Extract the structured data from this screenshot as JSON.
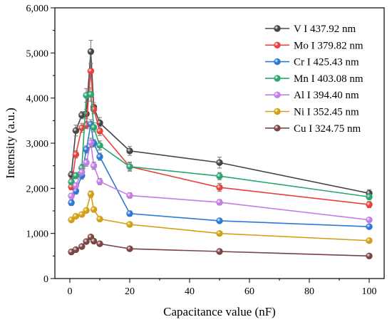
{
  "chart_data": {
    "type": "line",
    "title": "",
    "xlabel": "Capacitance value (nF)",
    "ylabel": "Intensity (a.u.)",
    "xlim": [
      -5,
      105
    ],
    "ylim": [
      0,
      6000
    ],
    "xticks": [
      0,
      20,
      40,
      60,
      80,
      100
    ],
    "yticks": [
      0,
      1000,
      2000,
      3000,
      4000,
      5000,
      6000
    ],
    "xtick_labels": [
      "0",
      "20",
      "40",
      "60",
      "80",
      "100"
    ],
    "ytick_labels": [
      "0",
      "1,000",
      "2,000",
      "3,000",
      "4,000",
      "5,000",
      "6,000"
    ],
    "legend_position": "top-right",
    "grid": false,
    "x": [
      0.5,
      2,
      4,
      5.5,
      7,
      8,
      10,
      20,
      50,
      100
    ],
    "series": [
      {
        "name": "V I 437.92 nm",
        "color": "#454545",
        "values": [
          2300,
          3280,
          3620,
          3650,
          5030,
          3800,
          3450,
          2830,
          2570,
          1890
        ],
        "errors": [
          80,
          120,
          80,
          100,
          250,
          100,
          120,
          100,
          120,
          80
        ]
      },
      {
        "name": "Mo I 379.82 nm",
        "color": "#e8413c",
        "values": [
          2030,
          2750,
          3340,
          3400,
          4600,
          3750,
          3270,
          2480,
          2020,
          1640
        ],
        "errors": [
          60,
          80,
          100,
          80,
          150,
          100,
          100,
          100,
          90,
          70
        ]
      },
      {
        "name": "Cr I 425.43 nm",
        "color": "#2b78d6",
        "values": [
          1680,
          1940,
          2280,
          2860,
          3420,
          3000,
          2700,
          1440,
          1280,
          1150
        ],
        "errors": [
          60,
          70,
          80,
          80,
          100,
          80,
          80,
          60,
          40,
          40
        ]
      },
      {
        "name": "Mn I 403.08 nm",
        "color": "#2aa570",
        "values": [
          2140,
          2280,
          2450,
          4060,
          4080,
          3350,
          2950,
          2480,
          2270,
          1810
        ],
        "errors": [
          60,
          70,
          80,
          150,
          150,
          100,
          100,
          90,
          80,
          60
        ]
      },
      {
        "name": "Al I 394.40 nm",
        "color": "#c57de6",
        "values": [
          1830,
          2060,
          2360,
          2570,
          3010,
          2500,
          2150,
          1840,
          1690,
          1300
        ],
        "errors": [
          60,
          60,
          70,
          80,
          100,
          80,
          70,
          60,
          60,
          50
        ]
      },
      {
        "name": "Ni I 352.45 nm",
        "color": "#d2a014",
        "values": [
          1300,
          1380,
          1420,
          1510,
          1870,
          1530,
          1320,
          1200,
          1000,
          840
        ],
        "errors": [
          40,
          40,
          40,
          50,
          70,
          50,
          40,
          40,
          30,
          30
        ]
      },
      {
        "name": "Cu I 324.75 nm",
        "color": "#7a4444",
        "values": [
          590,
          640,
          710,
          820,
          920,
          830,
          770,
          660,
          600,
          500
        ],
        "errors": [
          30,
          30,
          30,
          40,
          50,
          40,
          30,
          30,
          30,
          25
        ]
      }
    ]
  }
}
